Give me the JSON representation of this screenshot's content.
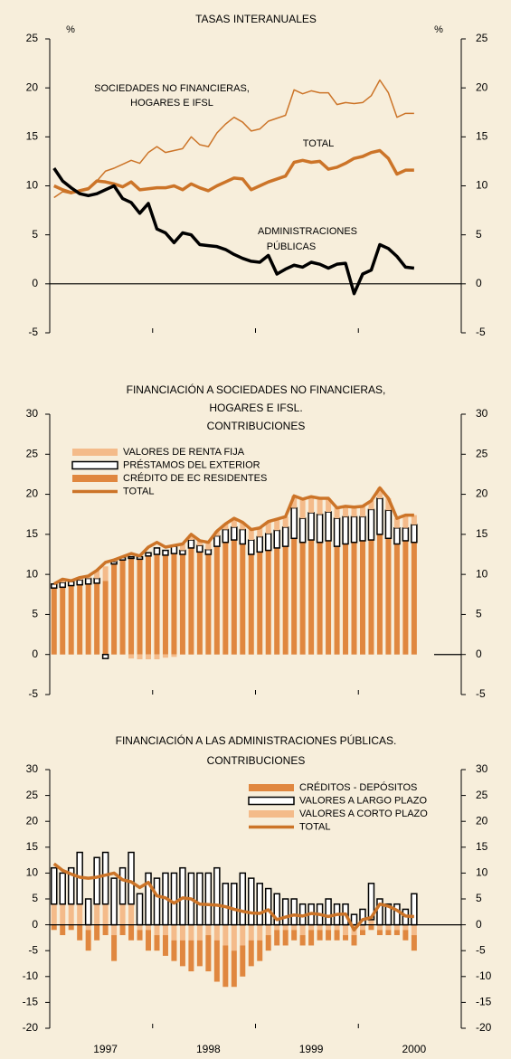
{
  "chart_data": [
    {
      "type": "line",
      "title": [
        "TASAS INTERANUALES"
      ],
      "annotations": [
        "%",
        "%"
      ],
      "ylim": [
        -5,
        25
      ],
      "yticks": [
        -5,
        0,
        5,
        10,
        15,
        20,
        25
      ],
      "series": [
        {
          "name": [
            "SOCIEDADES NO FINANCIERAS,",
            "HOGARES E IFSL"
          ],
          "color": "#cc7428",
          "linewidth": 1.5,
          "style": "line",
          "values": [
            8.8,
            9.4,
            9.2,
            9.6,
            9.8,
            10.5,
            11.5,
            11.8,
            12.2,
            12.6,
            12.3,
            13.4,
            14.0,
            13.4,
            13.6,
            13.8,
            15.0,
            14.2,
            14.0,
            15.4,
            16.3,
            17.0,
            16.5,
            15.6,
            15.8,
            16.6,
            16.9,
            17.2,
            19.8,
            19.4,
            19.7,
            19.5,
            19.5,
            18.3,
            18.5,
            18.4,
            18.5,
            19.2,
            20.8,
            19.5,
            17.0,
            17.4,
            17.4
          ]
        },
        {
          "name": [
            "TOTAL"
          ],
          "color": "#cc7428",
          "linewidth": 3.5,
          "style": "line",
          "values": [
            10.0,
            9.6,
            9.3,
            9.5,
            9.7,
            10.5,
            10.4,
            10.2,
            9.9,
            10.4,
            9.6,
            9.7,
            9.8,
            9.8,
            10.0,
            9.6,
            10.2,
            9.8,
            9.5,
            10.0,
            10.4,
            10.8,
            10.7,
            9.6,
            10.0,
            10.4,
            10.7,
            11.0,
            12.4,
            12.6,
            12.4,
            12.5,
            11.7,
            11.9,
            12.3,
            12.8,
            13.0,
            13.4,
            13.6,
            12.8,
            11.2,
            11.6,
            11.6
          ]
        },
        {
          "name": [
            "ADMINISTRACIONES",
            "PÚBLICAS"
          ],
          "color": "#000000",
          "linewidth": 3.5,
          "style": "line",
          "values": [
            11.8,
            10.5,
            9.8,
            9.2,
            9.0,
            9.2,
            9.6,
            10.0,
            8.7,
            8.3,
            7.2,
            8.2,
            5.6,
            5.2,
            4.2,
            5.2,
            5.0,
            4.0,
            3.9,
            3.8,
            3.5,
            3.0,
            2.6,
            2.3,
            2.2,
            2.9,
            1.0,
            1.5,
            1.9,
            1.7,
            2.2,
            2.0,
            1.6,
            2.0,
            2.1,
            -1.0,
            1.0,
            1.4,
            4.0,
            3.6,
            2.8,
            1.7,
            1.6
          ]
        }
      ]
    },
    {
      "type": "bar",
      "title": [
        "FINANCIACIÓN A SOCIEDADES NO FINANCIERAS,",
        "HOGARES E IFSL.",
        "CONTRIBUCIONES"
      ],
      "ylim": [
        -5,
        30
      ],
      "yticks": [
        -5,
        0,
        5,
        10,
        15,
        20,
        25,
        30
      ],
      "series": [
        {
          "name": "VALORES DE RENTA FIJA",
          "color": "#f4bb8a",
          "style": "fill",
          "values": [
            0.0,
            0.4,
            0.1,
            0.3,
            0.3,
            1.0,
            1.8,
            0.2,
            0.1,
            -0.5,
            -0.6,
            -0.6,
            -0.6,
            -0.4,
            -0.3,
            0.8,
            0.7,
            0.6,
            0.9,
            0.6,
            0.7,
            1.1,
            0.9,
            1.3,
            1.1,
            1.5,
            1.4,
            1.3,
            1.5,
            2.4,
            2.0,
            2.0,
            1.7,
            1.3,
            1.3,
            1.2,
            1.3,
            1.1,
            1.3,
            1.5,
            1.2,
            1.6,
            1.2
          ]
        },
        {
          "name": "PRÉSTAMOS DEL EXTERIOR",
          "color": "#ffffff",
          "style": "outline",
          "values": [
            0.5,
            0.6,
            0.5,
            0.6,
            0.7,
            0.6,
            -0.5,
            0.3,
            0.3,
            0.2,
            0.3,
            0.4,
            0.8,
            0.6,
            0.9,
            0.5,
            1.0,
            0.8,
            0.6,
            1.3,
            1.6,
            1.6,
            1.8,
            1.8,
            1.9,
            2.1,
            2.2,
            2.4,
            3.8,
            3.0,
            3.4,
            3.5,
            3.6,
            3.5,
            3.4,
            3.2,
            3.0,
            3.8,
            4.5,
            3.5,
            2.0,
            1.6,
            2.2
          ]
        },
        {
          "name": "CRÉDITO DE EC RESIDENTES",
          "color": "#e0873f",
          "style": "fill",
          "values": [
            8.3,
            8.4,
            8.6,
            8.7,
            8.8,
            8.9,
            9.2,
            11.3,
            11.8,
            12.0,
            11.9,
            12.3,
            12.5,
            12.4,
            12.6,
            12.5,
            13.3,
            12.8,
            12.5,
            13.5,
            14.0,
            14.3,
            13.8,
            12.5,
            12.8,
            13.0,
            13.3,
            13.5,
            14.5,
            14.0,
            14.3,
            14.0,
            14.2,
            13.5,
            13.8,
            14.0,
            14.2,
            14.3,
            15.0,
            14.5,
            13.8,
            14.2,
            14.0
          ]
        },
        {
          "name": "TOTAL",
          "color": "#cc7428",
          "style": "line",
          "linewidth": 3.5,
          "values": [
            8.8,
            9.4,
            9.2,
            9.6,
            9.8,
            10.5,
            11.5,
            11.8,
            12.2,
            12.6,
            12.3,
            13.4,
            14.0,
            13.4,
            13.6,
            13.8,
            15.0,
            14.2,
            14.0,
            15.4,
            16.3,
            17.0,
            16.5,
            15.6,
            15.8,
            16.6,
            16.9,
            17.2,
            19.8,
            19.4,
            19.7,
            19.5,
            19.5,
            18.3,
            18.5,
            18.4,
            18.5,
            19.2,
            20.8,
            19.5,
            17.0,
            17.4,
            17.4
          ]
        }
      ]
    },
    {
      "type": "bar",
      "title": [
        "FINANCIACIÓN A LAS ADMINISTRACIONES PÚBLICAS.",
        "CONTRIBUCIONES"
      ],
      "ylim": [
        -20,
        30
      ],
      "yticks": [
        -20,
        -15,
        -10,
        -5,
        0,
        5,
        10,
        15,
        20,
        25,
        30
      ],
      "categories": [
        null,
        null,
        null,
        null,
        null,
        null,
        "1997",
        null,
        null,
        null,
        null,
        null,
        null,
        null,
        null,
        null,
        null,
        null,
        "1998",
        null,
        null,
        null,
        null,
        null,
        null,
        null,
        null,
        null,
        null,
        null,
        "1999",
        null,
        null,
        null,
        null,
        null,
        null,
        null,
        null,
        null,
        null,
        null,
        "2000"
      ],
      "series": [
        {
          "name": "CRÉDITOS - DEPÓSITOS",
          "color": "#e0873f",
          "style": "fill",
          "values": [
            -1,
            -2,
            -1,
            -3,
            -4,
            -3,
            -2,
            -5,
            -2,
            -3,
            -2,
            -4,
            -3,
            -4,
            -4,
            -5,
            -6,
            -5,
            -7,
            -8,
            -8,
            -7,
            -6,
            -5,
            -4,
            -3,
            -3,
            -3,
            -2,
            -2,
            -3,
            -2,
            -2,
            -2,
            -1,
            -2,
            -1,
            -1,
            -1,
            -1,
            -1,
            -2,
            -3
          ]
        },
        {
          "name": "VALORES A LARGO PLAZO",
          "color": "#ffffff",
          "style": "outline",
          "values": [
            7,
            6,
            7,
            10,
            5,
            9,
            10,
            9,
            7,
            10,
            6,
            10,
            9,
            10,
            10,
            11,
            10,
            10,
            10,
            11,
            8,
            8,
            10,
            9,
            8,
            7,
            6,
            5,
            5,
            4,
            4,
            4,
            5,
            4,
            4,
            2,
            3,
            7,
            5,
            4,
            4,
            3,
            6
          ]
        },
        {
          "name": "VALORES A CORTO PLAZO",
          "color": "#f4bb8a",
          "style": "fill",
          "values": [
            4,
            4,
            4,
            4,
            -1,
            4,
            4,
            -2,
            4,
            4,
            -1,
            -1,
            -2,
            -2,
            -3,
            -3,
            -3,
            -3,
            -2,
            -3,
            -4,
            -5,
            -4,
            -3,
            -3,
            -2,
            -1,
            -1,
            -1,
            -2,
            -1,
            -1,
            -1,
            -1,
            -2,
            -2,
            -1,
            1,
            -1,
            -1,
            -1,
            -1,
            -2
          ]
        },
        {
          "name": "TOTAL",
          "color": "#cc7428",
          "style": "line",
          "linewidth": 3.5,
          "values": [
            11.8,
            10.5,
            9.8,
            9.2,
            9.0,
            9.2,
            9.6,
            10.0,
            8.7,
            8.3,
            7.2,
            8.2,
            5.6,
            5.2,
            4.2,
            5.2,
            5.0,
            4.0,
            3.9,
            3.8,
            3.5,
            3.0,
            2.6,
            2.3,
            2.2,
            2.9,
            1.0,
            1.5,
            1.9,
            1.7,
            2.2,
            2.0,
            1.6,
            2.0,
            2.1,
            -1.0,
            1.0,
            1.4,
            4.0,
            3.6,
            2.8,
            1.7,
            1.6
          ]
        }
      ]
    }
  ]
}
